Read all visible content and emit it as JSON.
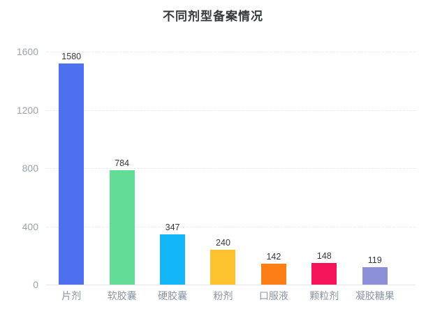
{
  "chart_data": {
    "type": "bar",
    "title": "不同剂型备案情况",
    "categories": [
      "片剂",
      "软胶囊",
      "硬胶囊",
      "粉剂",
      "口服液",
      "颗粒剂",
      "凝胶糖果"
    ],
    "values": [
      1580,
      784,
      347,
      240,
      142,
      148,
      119
    ],
    "bar_colors": [
      "#4e70f0",
      "#62dc96",
      "#12b6f6",
      "#fdc22d",
      "#fb7e17",
      "#f4145a",
      "#8b90d8"
    ],
    "value_labels_shown": true,
    "xlabel": "",
    "ylabel": "",
    "ylim": [
      0,
      1600
    ],
    "yticks": [
      0,
      400,
      800,
      1200,
      1600
    ],
    "grid": "horizontal-dashed",
    "legend": "none"
  },
  "colors": {
    "background": "#ffffff",
    "title_text": "#37393e",
    "axis_tick_text": "#9aa3ad",
    "category_text": "#8a94a2",
    "value_label_text": "#34373c",
    "gridline": "#e7eaee",
    "axis_line": "#e2e5ea"
  }
}
